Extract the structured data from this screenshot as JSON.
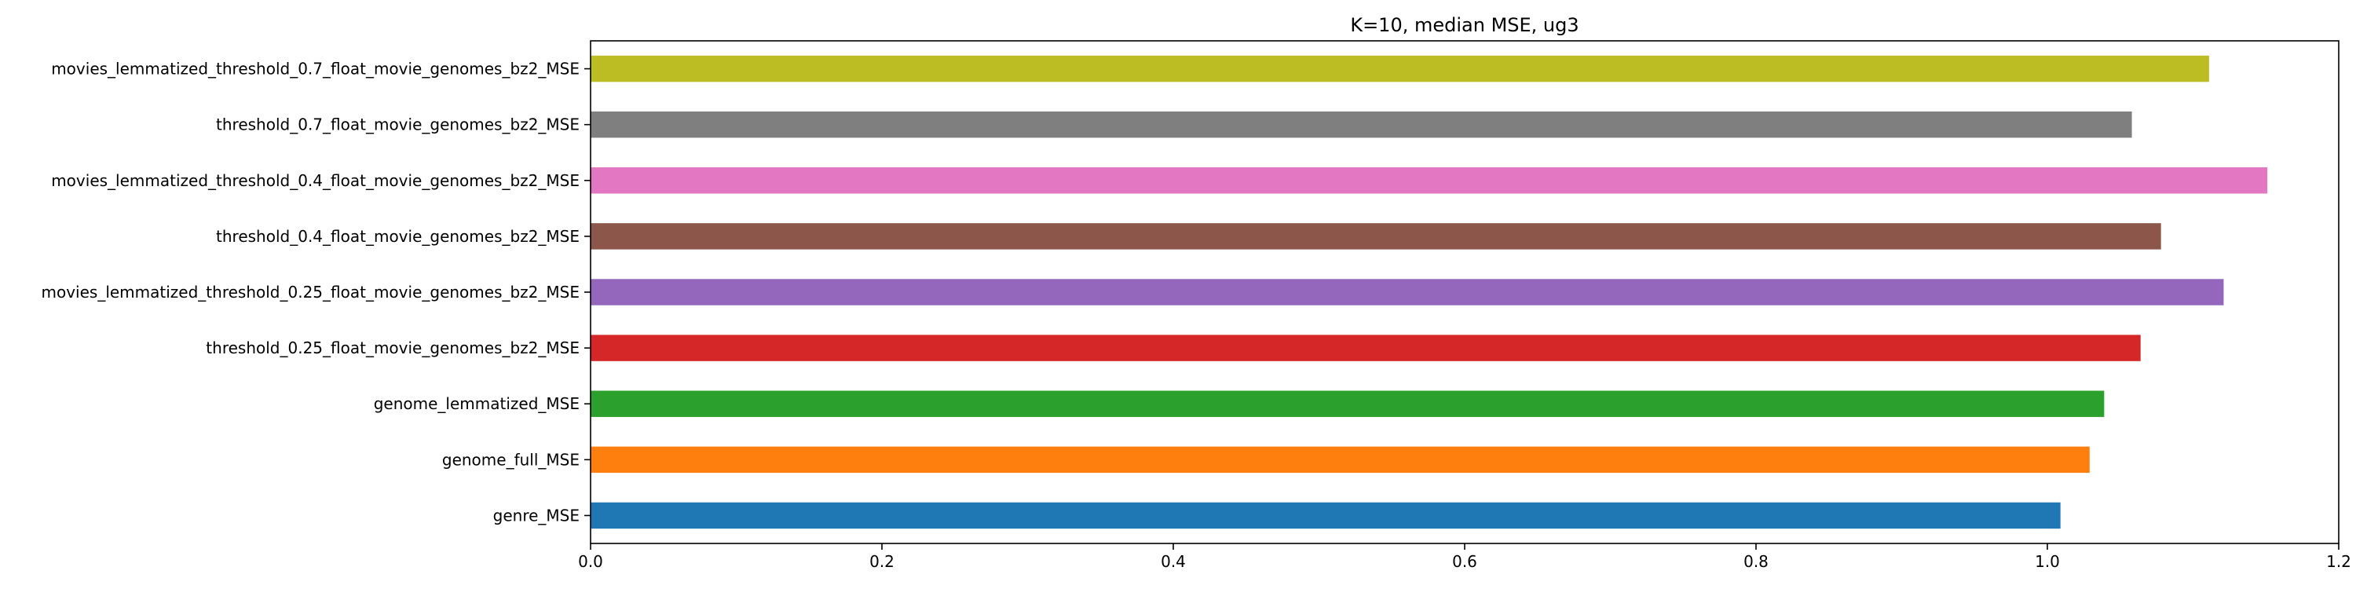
{
  "chart_data": {
    "type": "bar",
    "orientation": "horizontal",
    "title": "K=10, median MSE, ug3",
    "xlabel": "",
    "ylabel": "",
    "xlim": [
      0.0,
      1.2
    ],
    "xticks": [
      "0.0",
      "0.2",
      "0.4",
      "0.6",
      "0.8",
      "1.0",
      "1.2"
    ],
    "grid": false,
    "categories": [
      "genre_MSE",
      "genome_full_MSE",
      "genome_lemmatized_MSE",
      "threshold_0.25_float_movie_genomes_bz2_MSE",
      "movies_lemmatized_threshold_0.25_float_movie_genomes_bz2_MSE",
      "threshold_0.4_float_movie_genomes_bz2_MSE",
      "movies_lemmatized_threshold_0.4_float_movie_genomes_bz2_MSE",
      "threshold_0.7_float_movie_genomes_bz2_MSE",
      "movies_lemmatized_threshold_0.7_float_movie_genomes_bz2_MSE"
    ],
    "values": [
      1.009,
      1.029,
      1.039,
      1.064,
      1.121,
      1.078,
      1.151,
      1.058,
      1.111
    ],
    "colors": [
      "#1f77b4",
      "#ff7f0e",
      "#2ca02c",
      "#d62728",
      "#9467bd",
      "#8c564b",
      "#e377c2",
      "#7f7f7f",
      "#bcbd22"
    ]
  }
}
